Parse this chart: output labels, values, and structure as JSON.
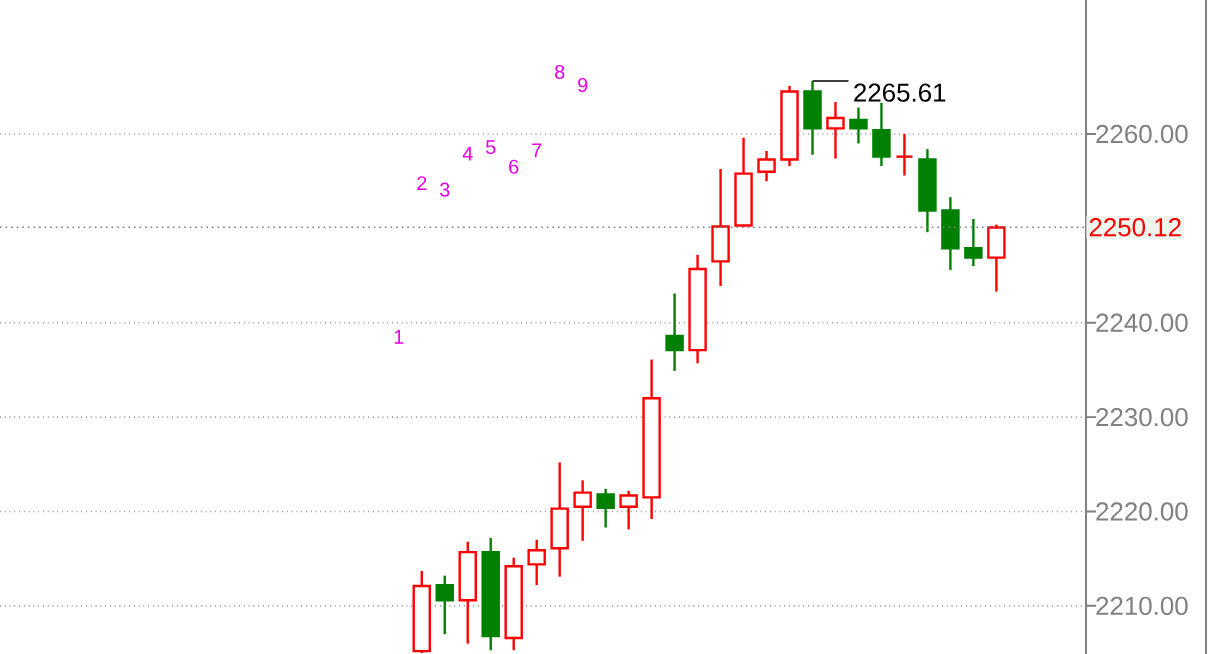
{
  "chart_data": {
    "type": "candlestick",
    "categories": [
      null,
      null,
      null,
      null,
      null,
      null,
      null,
      null,
      null,
      null,
      null,
      null,
      null,
      null,
      null,
      null,
      null,
      null,
      null,
      null,
      null,
      null,
      null,
      null,
      null,
      null
    ],
    "ohlc": [
      [
        2205.2,
        2213.7,
        2205.0,
        2212.1
      ],
      [
        2212.2,
        2213.2,
        2207.0,
        2210.6
      ],
      [
        2210.6,
        2216.8,
        2206.0,
        2215.7
      ],
      [
        2215.7,
        2217.2,
        2205.3,
        2206.8
      ],
      [
        2206.6,
        2215.1,
        2205.3,
        2214.2
      ],
      [
        2214.4,
        2217.0,
        2212.2,
        2215.9
      ],
      [
        2216.1,
        2225.2,
        2213.1,
        2220.3
      ],
      [
        2220.5,
        2223.3,
        2216.9,
        2222.0
      ],
      [
        2221.8,
        2222.4,
        2218.3,
        2220.4
      ],
      [
        2220.5,
        2222.2,
        2218.1,
        2221.7
      ],
      [
        2221.5,
        2236.1,
        2219.2,
        2232.0
      ],
      [
        2238.6,
        2243.1,
        2234.9,
        2237.1
      ],
      [
        2237.1,
        2247.2,
        2235.7,
        2245.7
      ],
      [
        2246.5,
        2256.3,
        2243.9,
        2250.2
      ],
      [
        2250.3,
        2259.6,
        2250.2,
        2255.8
      ],
      [
        2256.0,
        2258.2,
        2255.0,
        2257.3
      ],
      [
        2257.3,
        2265.1,
        2256.6,
        2264.5
      ],
      [
        2264.5,
        2265.61,
        2257.8,
        2260.6
      ],
      [
        2260.6,
        2263.4,
        2257.4,
        2261.7
      ],
      [
        2261.5,
        2262.8,
        2259.0,
        2260.6
      ],
      [
        2260.4,
        2263.3,
        2256.6,
        2257.6
      ],
      [
        2257.6,
        2260.0,
        2255.6,
        2257.6
      ],
      [
        2257.3,
        2258.4,
        2249.6,
        2251.9
      ],
      [
        2251.9,
        2253.3,
        2245.6,
        2247.9
      ],
      [
        2247.9,
        2251.0,
        2246.0,
        2246.9
      ],
      [
        2246.9,
        2250.4,
        2243.3,
        2250.1
      ]
    ],
    "colors": [
      "#ff0000",
      "#008000",
      "#ff0000",
      "#008000",
      "#ff0000",
      "#ff0000",
      "#ff0000",
      "#ff0000",
      "#008000",
      "#ff0000",
      "#ff0000",
      "#008000",
      "#ff0000",
      "#ff0000",
      "#ff0000",
      "#ff0000",
      "#ff0000",
      "#008000",
      "#ff0000",
      "#008000",
      "#008000",
      "#ff0000",
      "#008000",
      "#008000",
      "#008000",
      "#ff0000"
    ],
    "ylim": [
      2204.9,
      2274.2
    ],
    "yticks": [
      {
        "value": 2210,
        "label": "2210.00"
      },
      {
        "value": 2220,
        "label": "2220.00"
      },
      {
        "value": 2230,
        "label": "2230.00"
      },
      {
        "value": 2240,
        "label": "2240.00"
      },
      {
        "value": 2260,
        "label": "2260.00"
      }
    ],
    "grid": "y",
    "tick_labels": "y",
    "ref_lines": [
      {
        "axis": "y",
        "value": 2250.12,
        "label": "2250.12",
        "color": "#808080",
        "line_style": "dotted"
      }
    ],
    "annotations": [
      "1",
      "2",
      "3",
      "4",
      "5",
      "6",
      "7",
      "8",
      "9",
      "2265.61"
    ]
  }
}
